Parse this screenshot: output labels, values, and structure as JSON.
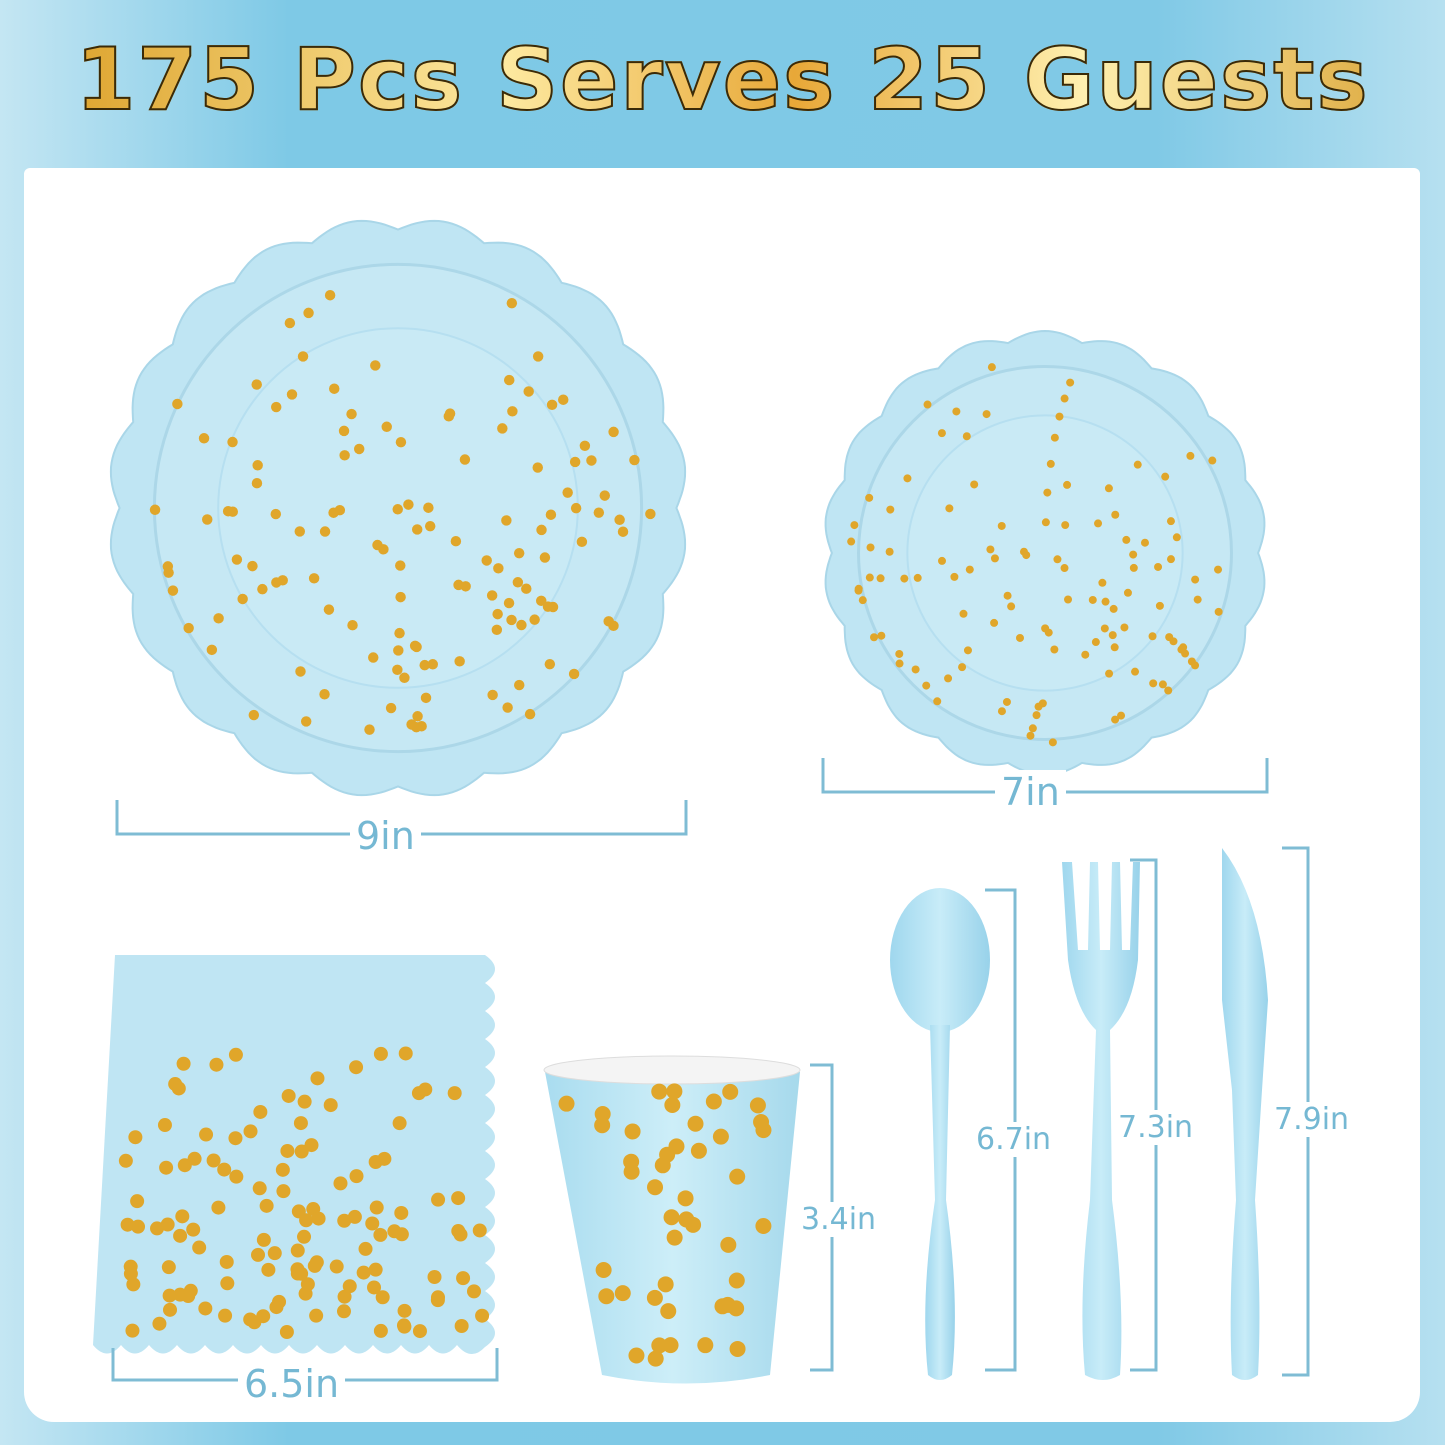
{
  "headline": "175 Pcs Serves 25 Guests",
  "colors": {
    "background": "#7ec9e6",
    "product_blue": "#bfe5f3",
    "gold": "#e0a62a",
    "dimension": "#75b8d3"
  },
  "items": [
    {
      "name": "large plate",
      "size": "9in"
    },
    {
      "name": "small plate",
      "size": "7in"
    },
    {
      "name": "napkin",
      "size": "6.5in"
    },
    {
      "name": "cup",
      "size": "3.4in"
    },
    {
      "name": "spoon",
      "size": "6.7in"
    },
    {
      "name": "fork",
      "size": "7.3in"
    },
    {
      "name": "knife",
      "size": "7.9in"
    }
  ]
}
